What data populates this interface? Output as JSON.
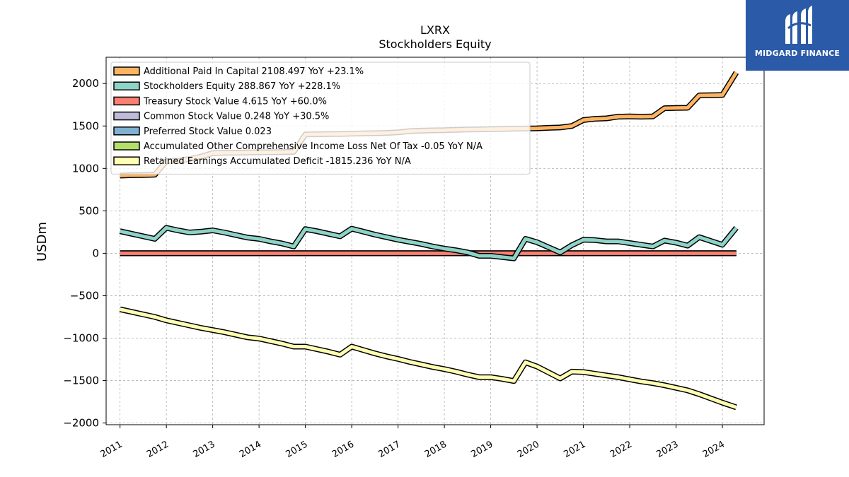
{
  "chart_data": {
    "type": "line",
    "title": "LXRX",
    "subtitle": "Stockholders  Equity",
    "ylabel": "USDm",
    "xlabel": "",
    "ylim": [
      -2020,
      2310
    ],
    "xlim": [
      2010.7,
      2024.9
    ],
    "yticks": [
      2000,
      1500,
      1000,
      500,
      0,
      -500,
      -1000,
      -1500,
      -2000
    ],
    "ytick_labels": [
      "2000",
      "1500",
      "1000",
      "500",
      "0",
      "−500",
      "−1000",
      "−1500",
      "−2000"
    ],
    "xticks": [
      2011,
      2012,
      2013,
      2014,
      2015,
      2016,
      2017,
      2018,
      2019,
      2020,
      2021,
      2022,
      2023,
      2024
    ],
    "xtick_labels": [
      "2011",
      "2012",
      "2013",
      "2014",
      "2015",
      "2016",
      "2017",
      "2018",
      "2019",
      "2020",
      "2021",
      "2022",
      "2023",
      "2024"
    ],
    "grid": true,
    "legend_position": "top-left",
    "series": [
      {
        "name": "Additional Paid In Capital",
        "legend": "Additional Paid In Capital  2108.497 YoY +23.1%",
        "color": "#fdb462",
        "points": [
          [
            2011.0,
            915
          ],
          [
            2011.25,
            920
          ],
          [
            2011.5,
            922
          ],
          [
            2011.75,
            925
          ],
          [
            2012.0,
            1085
          ],
          [
            2012.25,
            1090
          ],
          [
            2012.5,
            1110
          ],
          [
            2012.75,
            1140
          ],
          [
            2013.0,
            1180
          ],
          [
            2013.25,
            1185
          ],
          [
            2013.5,
            1185
          ],
          [
            2013.75,
            1188
          ],
          [
            2014.0,
            1190
          ],
          [
            2014.25,
            1190
          ],
          [
            2014.5,
            1192
          ],
          [
            2014.75,
            1195
          ],
          [
            2015.0,
            1400
          ],
          [
            2015.25,
            1402
          ],
          [
            2015.5,
            1404
          ],
          [
            2015.75,
            1406
          ],
          [
            2016.0,
            1410
          ],
          [
            2016.25,
            1412
          ],
          [
            2016.5,
            1415
          ],
          [
            2016.75,
            1418
          ],
          [
            2017.0,
            1425
          ],
          [
            2017.25,
            1440
          ],
          [
            2017.5,
            1445
          ],
          [
            2017.75,
            1448
          ],
          [
            2018.0,
            1450
          ],
          [
            2018.25,
            1455
          ],
          [
            2018.5,
            1458
          ],
          [
            2018.75,
            1460
          ],
          [
            2019.0,
            1462
          ],
          [
            2019.25,
            1465
          ],
          [
            2019.5,
            1468
          ],
          [
            2019.75,
            1470
          ],
          [
            2020.0,
            1472
          ],
          [
            2020.25,
            1478
          ],
          [
            2020.5,
            1482
          ],
          [
            2020.75,
            1500
          ],
          [
            2021.0,
            1570
          ],
          [
            2021.25,
            1585
          ],
          [
            2021.5,
            1590
          ],
          [
            2021.75,
            1610
          ],
          [
            2022.0,
            1612
          ],
          [
            2022.25,
            1610
          ],
          [
            2022.5,
            1612
          ],
          [
            2022.75,
            1710
          ],
          [
            2023.0,
            1712
          ],
          [
            2023.25,
            1715
          ],
          [
            2023.5,
            1860
          ],
          [
            2023.75,
            1862
          ],
          [
            2024.0,
            1865
          ],
          [
            2024.3,
            2130
          ]
        ]
      },
      {
        "name": "Stockholders Equity",
        "legend": "Stockholders Equity  288.867 YoY +228.1%",
        "color": "#8dd3c7",
        "points": [
          [
            2011.0,
            260
          ],
          [
            2011.25,
            230
          ],
          [
            2011.5,
            200
          ],
          [
            2011.75,
            170
          ],
          [
            2012.0,
            300
          ],
          [
            2012.25,
            270
          ],
          [
            2012.5,
            245
          ],
          [
            2012.75,
            255
          ],
          [
            2013.0,
            270
          ],
          [
            2013.25,
            245
          ],
          [
            2013.5,
            215
          ],
          [
            2013.75,
            185
          ],
          [
            2014.0,
            170
          ],
          [
            2014.25,
            140
          ],
          [
            2014.5,
            115
          ],
          [
            2014.75,
            80
          ],
          [
            2015.0,
            285
          ],
          [
            2015.25,
            260
          ],
          [
            2015.5,
            230
          ],
          [
            2015.75,
            200
          ],
          [
            2016.0,
            290
          ],
          [
            2016.25,
            255
          ],
          [
            2016.5,
            220
          ],
          [
            2016.75,
            190
          ],
          [
            2017.0,
            160
          ],
          [
            2017.25,
            135
          ],
          [
            2017.5,
            110
          ],
          [
            2017.75,
            80
          ],
          [
            2018.0,
            55
          ],
          [
            2018.25,
            35
          ],
          [
            2018.5,
            10
          ],
          [
            2018.75,
            -30
          ],
          [
            2019.0,
            -30
          ],
          [
            2019.25,
            -45
          ],
          [
            2019.5,
            -60
          ],
          [
            2019.75,
            170
          ],
          [
            2020.0,
            130
          ],
          [
            2020.25,
            70
          ],
          [
            2020.5,
            10
          ],
          [
            2020.75,
            95
          ],
          [
            2021.0,
            160
          ],
          [
            2021.25,
            155
          ],
          [
            2021.5,
            140
          ],
          [
            2021.75,
            140
          ],
          [
            2022.0,
            120
          ],
          [
            2022.25,
            100
          ],
          [
            2022.5,
            80
          ],
          [
            2022.75,
            150
          ],
          [
            2023.0,
            125
          ],
          [
            2023.25,
            90
          ],
          [
            2023.5,
            190
          ],
          [
            2023.75,
            145
          ],
          [
            2024.0,
            100
          ],
          [
            2024.3,
            300
          ]
        ]
      },
      {
        "name": "Treasury Stock Value",
        "legend": "Treasury Stock Value  4.615 YoY +60.0%",
        "color": "#fb8072",
        "points": [
          [
            2011.0,
            0
          ],
          [
            2024.3,
            0
          ]
        ]
      },
      {
        "name": "Common Stock Value",
        "legend": "Common Stock Value  0.248 YoY +30.5%",
        "color": "#bebada",
        "points": [
          [
            2011.0,
            0
          ],
          [
            2024.3,
            0
          ]
        ]
      },
      {
        "name": "Preferred Stock Value",
        "legend": "Preferred Stock Value  0.023",
        "color": "#80b1d3",
        "points": [
          [
            2011.0,
            0
          ],
          [
            2024.3,
            0
          ]
        ]
      },
      {
        "name": "Accumulated Other Comprehensive Income Loss Net Of Tax",
        "legend": "Accumulated Other Comprehensive Income Loss Net Of Tax  -0.05 YoY N/A",
        "color": "#b3de69",
        "points": [
          [
            2011.0,
            0
          ],
          [
            2024.3,
            0
          ]
        ]
      },
      {
        "name": "Retained Earnings Accumulated Deficit",
        "legend": "Retained Earnings Accumulated Deficit  -1815.236 YoY N/A",
        "color": "#ffffb3",
        "points": [
          [
            2011.0,
            -660
          ],
          [
            2011.25,
            -690
          ],
          [
            2011.5,
            -720
          ],
          [
            2011.75,
            -750
          ],
          [
            2012.0,
            -790
          ],
          [
            2012.25,
            -820
          ],
          [
            2012.5,
            -850
          ],
          [
            2012.75,
            -880
          ],
          [
            2013.0,
            -905
          ],
          [
            2013.25,
            -930
          ],
          [
            2013.5,
            -960
          ],
          [
            2013.75,
            -990
          ],
          [
            2014.0,
            -1005
          ],
          [
            2014.25,
            -1035
          ],
          [
            2014.5,
            -1065
          ],
          [
            2014.75,
            -1100
          ],
          [
            2015.0,
            -1100
          ],
          [
            2015.25,
            -1130
          ],
          [
            2015.5,
            -1160
          ],
          [
            2015.75,
            -1195
          ],
          [
            2016.0,
            -1100
          ],
          [
            2016.25,
            -1140
          ],
          [
            2016.5,
            -1180
          ],
          [
            2016.75,
            -1215
          ],
          [
            2017.0,
            -1245
          ],
          [
            2017.25,
            -1280
          ],
          [
            2017.5,
            -1310
          ],
          [
            2017.75,
            -1340
          ],
          [
            2018.0,
            -1365
          ],
          [
            2018.25,
            -1395
          ],
          [
            2018.5,
            -1430
          ],
          [
            2018.75,
            -1460
          ],
          [
            2019.0,
            -1460
          ],
          [
            2019.25,
            -1480
          ],
          [
            2019.5,
            -1505
          ],
          [
            2019.75,
            -1285
          ],
          [
            2020.0,
            -1335
          ],
          [
            2020.25,
            -1405
          ],
          [
            2020.5,
            -1475
          ],
          [
            2020.75,
            -1395
          ],
          [
            2021.0,
            -1400
          ],
          [
            2021.25,
            -1420
          ],
          [
            2021.5,
            -1440
          ],
          [
            2021.75,
            -1460
          ],
          [
            2022.0,
            -1485
          ],
          [
            2022.25,
            -1510
          ],
          [
            2022.5,
            -1530
          ],
          [
            2022.75,
            -1555
          ],
          [
            2023.0,
            -1585
          ],
          [
            2023.25,
            -1615
          ],
          [
            2023.5,
            -1660
          ],
          [
            2023.75,
            -1710
          ],
          [
            2024.0,
            -1760
          ],
          [
            2024.3,
            -1815
          ]
        ]
      }
    ]
  },
  "brand": {
    "name": "MIDGARD FINANCE",
    "color": "#2a5aa8"
  }
}
